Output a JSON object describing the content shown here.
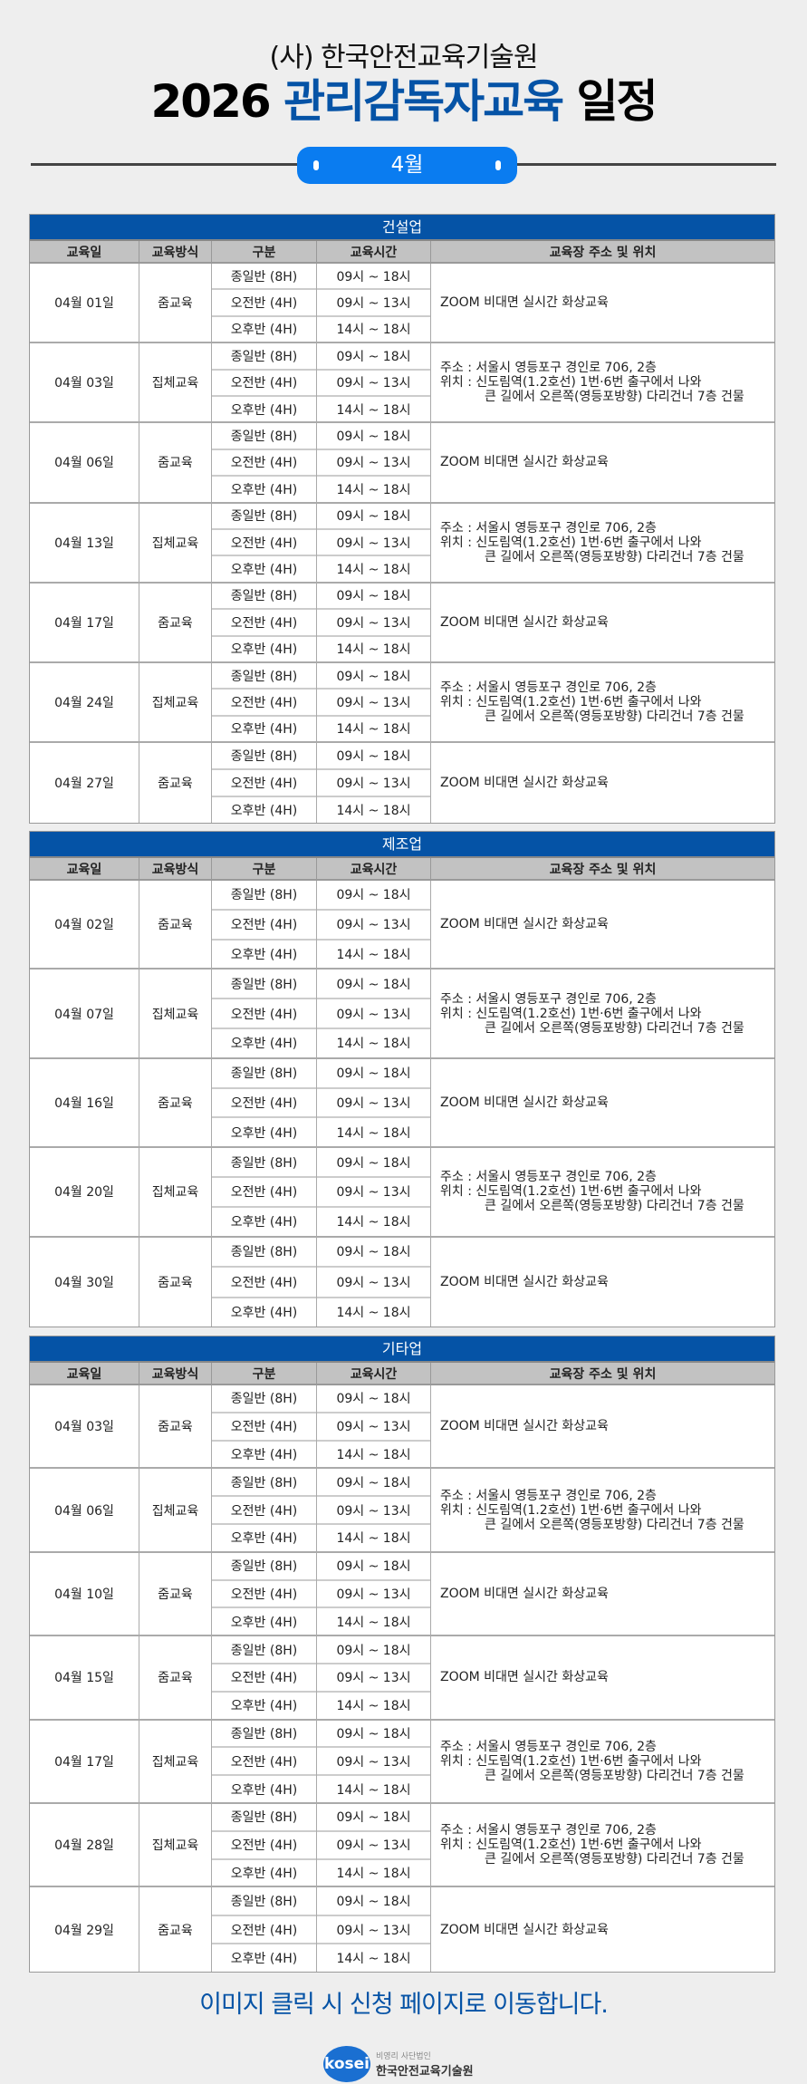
{
  "header": {
    "org": "(사) 한국안전교육기술원",
    "year": "2026",
    "highlight": "관리감독자교육",
    "suffix": "일정",
    "month": "4월"
  },
  "columns": [
    "교육일",
    "교육방식",
    "구분",
    "교육시간",
    "교육장 주소 및 위치"
  ],
  "sessions": [
    {
      "name": "종일반 (8H)",
      "time": "09시 ~ 18시"
    },
    {
      "name": "오전반 (4H)",
      "time": "09시 ~ 13시"
    },
    {
      "name": "오후반 (4H)",
      "time": "14시 ~ 18시"
    }
  ],
  "locations": {
    "zoom": [
      "ZOOM 비대면 실시간 화상교육"
    ],
    "onsite": [
      "주소 : 서울시 영등포구 경인로 706, 2층",
      "위치 : 신도림역(1.2호선) 1번·6번 출구에서 나와",
      "큰 길에서 오른쪽(영등포방향) 다리건너 7층 건물"
    ]
  },
  "tables": [
    {
      "title": "건설업",
      "rows": [
        {
          "date": "04월 01일",
          "method": "줌교육",
          "loc": "zoom"
        },
        {
          "date": "04월 03일",
          "method": "집체교육",
          "loc": "onsite"
        },
        {
          "date": "04월 06일",
          "method": "줌교육",
          "loc": "zoom"
        },
        {
          "date": "04월 13일",
          "method": "집체교육",
          "loc": "onsite"
        },
        {
          "date": "04월 17일",
          "method": "줌교육",
          "loc": "zoom"
        },
        {
          "date": "04월 24일",
          "method": "집체교육",
          "loc": "onsite"
        },
        {
          "date": "04월 27일",
          "method": "줌교육",
          "loc": "zoom"
        }
      ]
    },
    {
      "title": "제조업",
      "rows": [
        {
          "date": "04월 02일",
          "method": "줌교육",
          "loc": "zoom"
        },
        {
          "date": "04월 07일",
          "method": "집체교육",
          "loc": "onsite"
        },
        {
          "date": "04월 16일",
          "method": "줌교육",
          "loc": "zoom"
        },
        {
          "date": "04월 20일",
          "method": "집체교육",
          "loc": "onsite"
        },
        {
          "date": "04월 30일",
          "method": "줌교육",
          "loc": "zoom"
        }
      ]
    },
    {
      "title": "기타업",
      "rows": [
        {
          "date": "04월 03일",
          "method": "줌교육",
          "loc": "zoom"
        },
        {
          "date": "04월 06일",
          "method": "집체교육",
          "loc": "onsite"
        },
        {
          "date": "04월 10일",
          "method": "줌교육",
          "loc": "zoom"
        },
        {
          "date": "04월 15일",
          "method": "줌교육",
          "loc": "zoom"
        },
        {
          "date": "04월 17일",
          "method": "집체교육",
          "loc": "onsite"
        },
        {
          "date": "04월 28일",
          "method": "집체교육",
          "loc": "onsite"
        },
        {
          "date": "04월 29일",
          "method": "줌교육",
          "loc": "zoom"
        }
      ]
    }
  ],
  "footer": {
    "cta": "이미지 클릭 시 신청 페이지로 이동합니다.",
    "logo_mark": "kosei",
    "logo_sub": "비영리 사단법인",
    "logo_name": "한국안전교육기술원"
  },
  "colors": {
    "brand": "#0553a6",
    "pill": "#0a7cf0",
    "header_bg": "#c2c2c2"
  }
}
